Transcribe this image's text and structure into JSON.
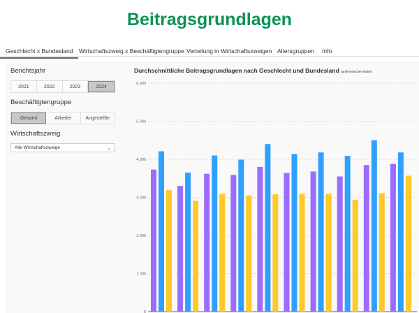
{
  "title": "Beitragsgrundlagen",
  "tabs": [
    "Geschlecht x Bundesland",
    "Wirtschaftszweig x Beschäftigtengruppe",
    "Verteilung in Wirtschaftszweigen",
    "Altersgruppen",
    "Info"
  ],
  "sidebar": {
    "year_label": "Berichtsjahr",
    "years": [
      "2021",
      "2022",
      "2023",
      "2024"
    ],
    "selected_year": "2024",
    "group_label": "Beschäftigtengruppe",
    "groups": [
      "Gesamt",
      "Arbeiter",
      "Angestellte"
    ],
    "selected_group": "Gesamt",
    "branch_label": "Wirtschaftszweig",
    "branch_value": "Alle Wirtschaftszweige",
    "chevron": "chevron-down-icon"
  },
  "chart_title": "Durchschnittliche Beitragsgrundlagen nach Geschlecht und Bundesland",
  "chart_subtitle": "(arithmetisches Mittel)",
  "chart_data": {
    "type": "bar",
    "ylim": [
      0,
      6000
    ],
    "yticks": [
      "0",
      "1.000",
      "2.000",
      "3.000",
      "4.000",
      "5.000",
      "6.000"
    ],
    "grid": true,
    "colors": [
      "#9b6cff",
      "#2fa0ff",
      "#ffc928"
    ],
    "series": [
      {
        "values": [
          3730,
          3300,
          3620,
          3590,
          3800,
          3640,
          3680,
          3550,
          3850,
          3880
        ]
      },
      {
        "values": [
          4210,
          3650,
          4100,
          3990,
          4400,
          4140,
          4180,
          4090,
          4500,
          4180
        ]
      },
      {
        "values": [
          3190,
          2910,
          3090,
          3050,
          3080,
          3090,
          3090,
          2940,
          3110,
          3570
        ]
      }
    ]
  }
}
